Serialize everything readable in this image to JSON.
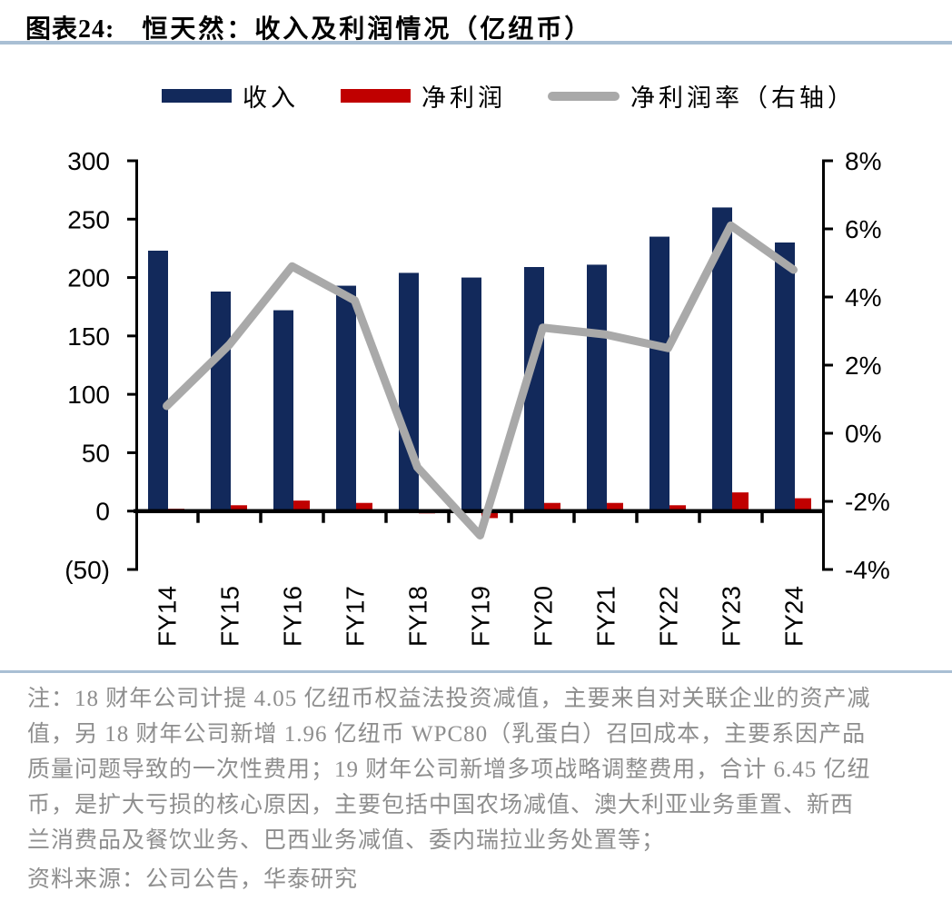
{
  "figure": {
    "label": "图表24:",
    "title": "恒天然：收入及利润情况（亿纽币）"
  },
  "legend": [
    {
      "label": "收入",
      "type": "bar",
      "color": "#12295B"
    },
    {
      "label": "净利润",
      "type": "bar",
      "color": "#C00000"
    },
    {
      "label": "净利润率（右轴）",
      "type": "line",
      "color": "#A9A9A9"
    }
  ],
  "colors": {
    "revenue_bar": "#12295B",
    "profit_bar": "#C00000",
    "margin_line": "#A9A9A9",
    "divider": "#A9BFD4",
    "note_text": "#8E8E8E",
    "axis": "#000000"
  },
  "chart_data": {
    "type": "bar",
    "subtype": "bar+line combo, dual axis",
    "categories": [
      "FY14",
      "FY15",
      "FY16",
      "FY17",
      "FY18",
      "FY19",
      "FY20",
      "FY21",
      "FY22",
      "FY23",
      "FY24"
    ],
    "series": [
      {
        "name": "收入",
        "type": "bar",
        "axis": "left",
        "color": "#12295B",
        "values": [
          223,
          188,
          172,
          193,
          204,
          200,
          209,
          211,
          235,
          260,
          230
        ]
      },
      {
        "name": "净利润",
        "type": "bar",
        "axis": "left",
        "color": "#C00000",
        "values": [
          2,
          5,
          9,
          7,
          -2,
          -6,
          7,
          7,
          5,
          16,
          11
        ]
      },
      {
        "name": "净利润率（右轴）",
        "type": "line",
        "axis": "right",
        "color": "#A9A9A9",
        "values": [
          0.8,
          2.6,
          4.9,
          3.9,
          -1.0,
          -3.0,
          3.1,
          2.9,
          2.5,
          6.1,
          4.8
        ]
      }
    ],
    "left_axis": {
      "min": -50,
      "max": 300,
      "tick_labels": [
        "300",
        "250",
        "200",
        "150",
        "100",
        "50",
        "0",
        "(50)"
      ],
      "tick_values": [
        300,
        250,
        200,
        150,
        100,
        50,
        0,
        -50
      ]
    },
    "right_axis": {
      "min": -4,
      "max": 8,
      "tick_labels": [
        "8%",
        "6%",
        "4%",
        "2%",
        "0%",
        "-2%",
        "-4%"
      ],
      "tick_values": [
        8,
        6,
        4,
        2,
        0,
        -2,
        -4
      ]
    },
    "grid": false,
    "legend_position": "top",
    "title": "恒天然：收入及利润情况（亿纽币）",
    "xlabel": "",
    "ylabel": ""
  },
  "note": {
    "lines": [
      "注：18 财年公司计提 4.05 亿纽币权益法投资减值，主要来自对关联企业的资产减",
      "值，另 18 财年公司新增 1.96 亿纽币 WPC80（乳蛋白）召回成本，主要系因产品",
      "质量问题导致的一次性费用；19 财年公司新增多项战略调整费用，合计 6.45 亿纽",
      "币，是扩大亏损的核心原因，主要包括中国农场减值、澳大利亚业务重置、新西",
      "兰消费品及餐饮业务、巴西业务减值、委内瑞拉业务处置等；"
    ]
  },
  "source": "资料来源：公司公告，华泰研究"
}
